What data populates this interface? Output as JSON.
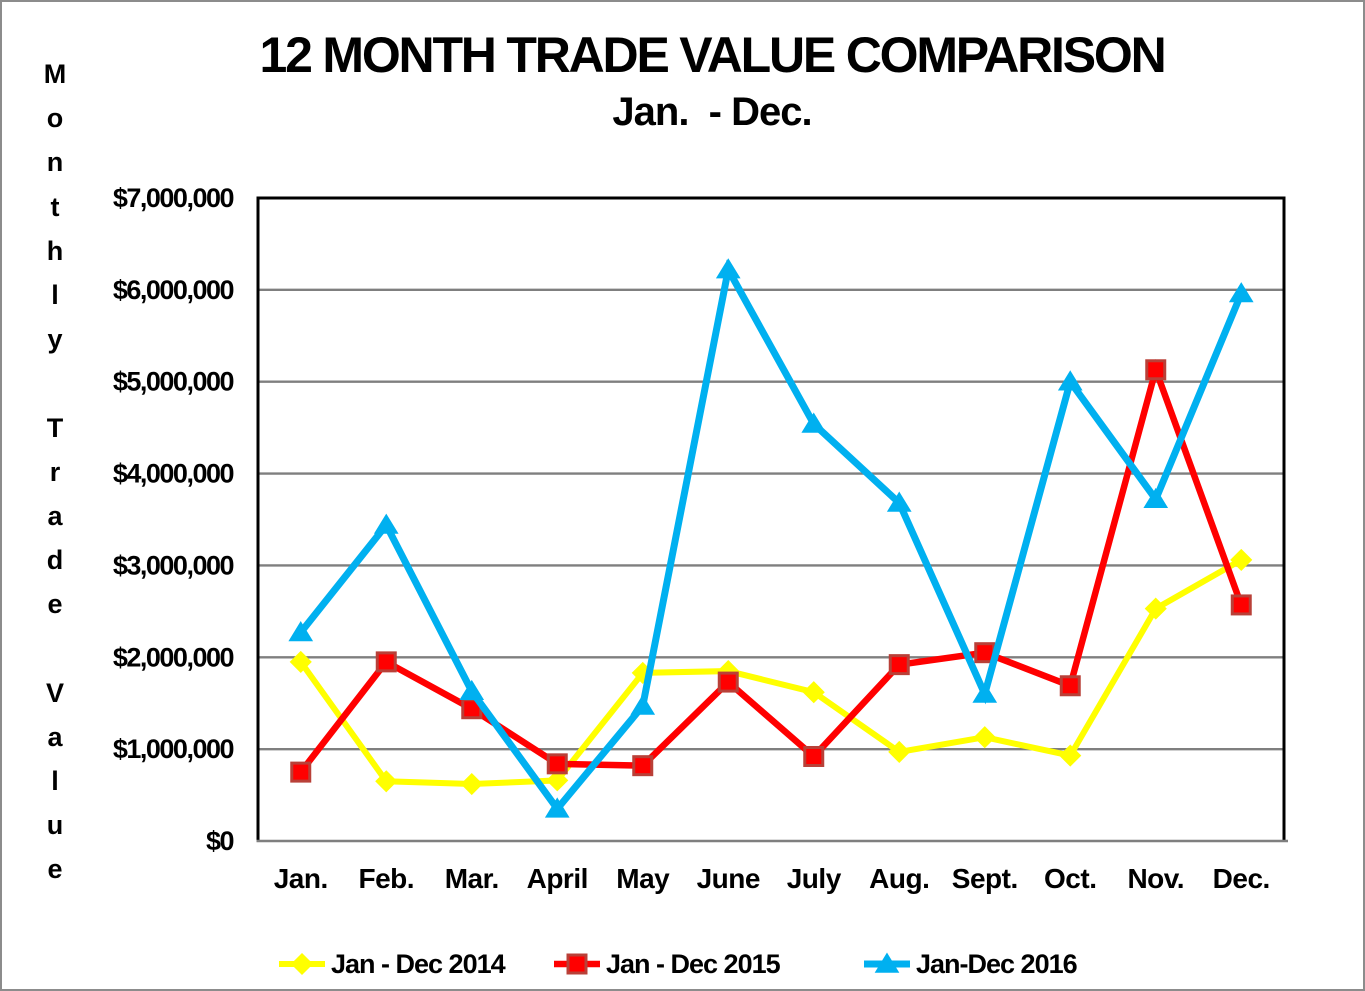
{
  "frame": {
    "border_color": "#8c8c8c",
    "background": "#ffffff"
  },
  "title": {
    "line1": "12 MONTH TRADE VALUE COMPARISON",
    "line2": "Jan.  - Dec."
  },
  "y_axis_title": "Monthly Trade Value",
  "chart_data": {
    "type": "line",
    "title": "12 MONTH TRADE VALUE COMPARISON",
    "subtitle": "Jan.  - Dec.",
    "xlabel": "",
    "ylabel": "Monthly Trade Value",
    "ylim": [
      0,
      7000000
    ],
    "grid": "horizontal",
    "gridline_color": "#7f7f7f",
    "axis_color": "#000000",
    "legend_position": "bottom",
    "categories": [
      "Jan.",
      "Feb.",
      "Mar.",
      "April",
      "May",
      "June",
      "July",
      "Aug.",
      "Sept.",
      "Oct.",
      "Nov.",
      "Dec."
    ],
    "y_tick_labels": [
      "$0",
      "$1,000,000",
      "$2,000,000",
      "$3,000,000",
      "$4,000,000",
      "$5,000,000",
      "$6,000,000",
      "$7,000,000"
    ],
    "series": [
      {
        "name": "Jan - Dec 2014",
        "color": "#ffff00",
        "marker": "diamond",
        "marker_border": "#ffff00",
        "values": [
          1950000,
          650000,
          620000,
          660000,
          1830000,
          1850000,
          1620000,
          970000,
          1130000,
          930000,
          2530000,
          3060000
        ]
      },
      {
        "name": "Jan - Dec 2015",
        "color": "#ff0000",
        "marker": "square",
        "marker_border": "#b94038",
        "values": [
          750000,
          1950000,
          1440000,
          840000,
          820000,
          1730000,
          920000,
          1920000,
          2050000,
          1690000,
          5130000,
          2570000
        ]
      },
      {
        "name": "Jan-Dec 2016",
        "color": "#00b0f0",
        "marker": "triangle",
        "marker_border": "#00b0f0",
        "values": [
          2270000,
          3440000,
          1630000,
          350000,
          1470000,
          6220000,
          4540000,
          3680000,
          1600000,
          5000000,
          3720000,
          5960000
        ]
      }
    ]
  }
}
